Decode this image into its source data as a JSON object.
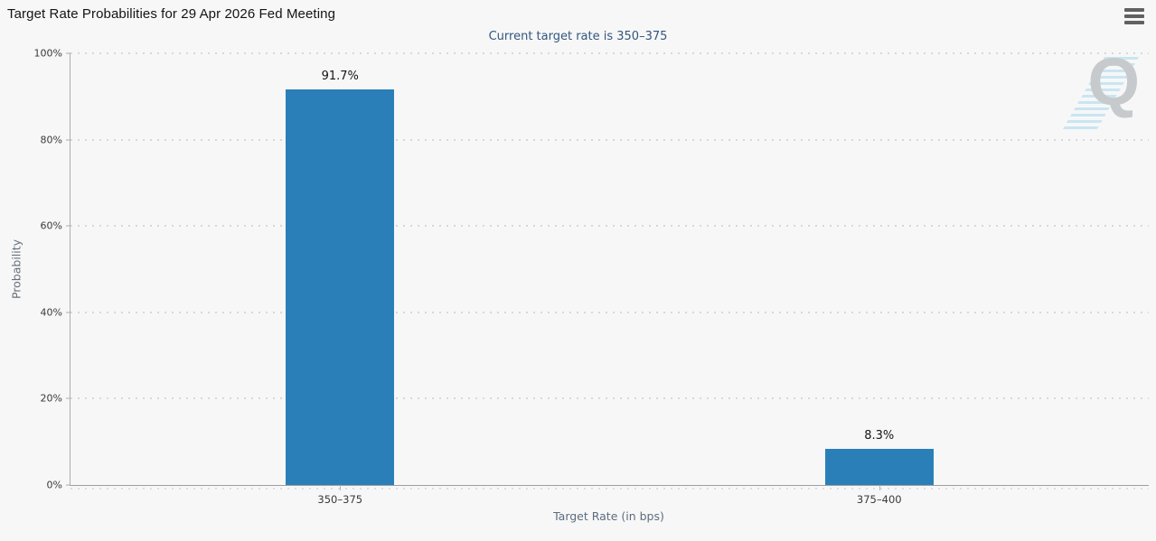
{
  "header": {
    "title": "Target Rate Probabilities for 29 Apr 2026 Fed Meeting"
  },
  "chart_data": {
    "type": "bar",
    "title": "Target Rate Probabilities for 29 Apr 2026 Fed Meeting",
    "subtitle": "Current target rate is 350–375",
    "categories": [
      "350–375",
      "375–400"
    ],
    "values": [
      91.7,
      8.3
    ],
    "value_labels": [
      "91.7%",
      "8.3%"
    ],
    "xlabel": "Target Rate (in bps)",
    "ylabel": "Probability",
    "ylim": [
      0,
      100
    ],
    "yticks": [
      "0%",
      "20%",
      "40%",
      "60%",
      "80%",
      "100%"
    ],
    "grid": "dotted horizontal gridlines at each 20%",
    "legend": "none",
    "bar_color": "#2b7fb8"
  },
  "colors": {
    "background": "#f7f7f8",
    "bar": "#2b7fb8",
    "subtitle_text": "#32567e",
    "axis_line": "#9e9e9e",
    "grid_dots": "#d8d8d8"
  },
  "watermark": {
    "letter": "Q"
  },
  "icons": {
    "menu": "hamburger-icon"
  }
}
